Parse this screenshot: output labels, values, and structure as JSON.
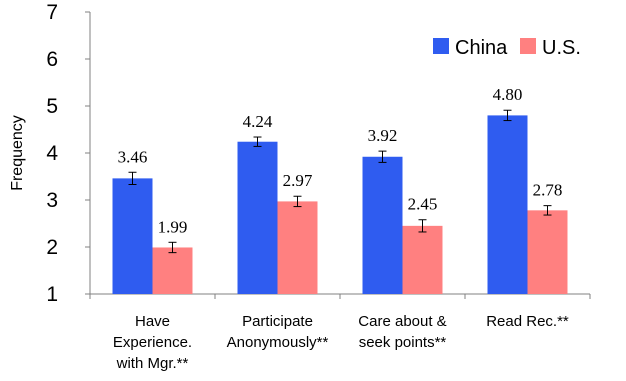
{
  "chart_data": {
    "type": "bar",
    "ylabel": "Frequency",
    "ylim": [
      1,
      7
    ],
    "yticks": [
      1,
      2,
      3,
      4,
      5,
      6,
      7
    ],
    "categories": [
      [
        "Have",
        "Experience.",
        "with Mgr.**"
      ],
      [
        "Participate",
        "Anonymously**"
      ],
      [
        "Care about &",
        "seek points**"
      ],
      [
        "Read Rec.**"
      ]
    ],
    "series": [
      {
        "name": "China",
        "color": "#2f5cf0",
        "values": [
          3.46,
          4.24,
          3.92,
          4.8
        ],
        "labels": [
          "3.46",
          "4.24",
          "3.92",
          "4.80"
        ],
        "error": [
          0.13,
          0.1,
          0.12,
          0.11
        ]
      },
      {
        "name": "U.S.",
        "color": "#ff8080",
        "values": [
          1.99,
          2.97,
          2.45,
          2.78
        ],
        "labels": [
          "1.99",
          "2.97",
          "2.45",
          "2.78"
        ],
        "error": [
          0.11,
          0.11,
          0.13,
          0.1
        ]
      }
    ],
    "legend_position": "top-right",
    "grid": false
  }
}
